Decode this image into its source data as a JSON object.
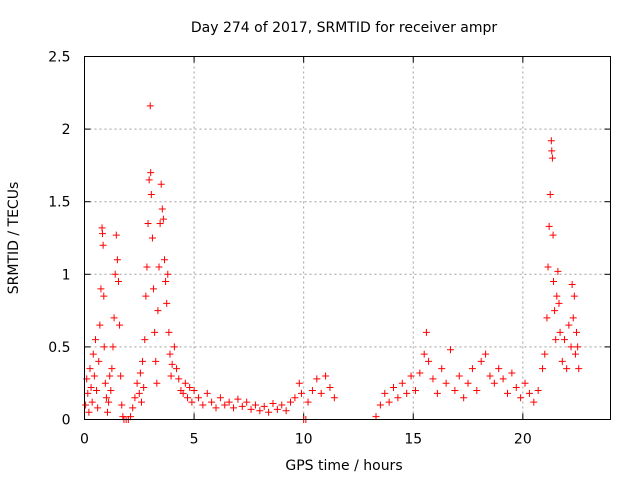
{
  "chart_data": {
    "type": "scatter",
    "title": "Day 274 of 2017, SRMTID for receiver ampr",
    "xlabel": "GPS time / hours",
    "ylabel": "SRMTID / TECUs",
    "xlim": [
      0,
      24
    ],
    "ylim": [
      0,
      2.5
    ],
    "x_ticks": [
      0,
      5,
      10,
      15,
      20
    ],
    "x_tick_labels": [
      "0",
      "5",
      "10",
      "15",
      "20"
    ],
    "y_ticks": [
      0,
      0.5,
      1,
      1.5,
      2,
      2.5
    ],
    "y_tick_labels": [
      "0",
      "0.5",
      "1",
      "1.5",
      "2",
      "2.5"
    ],
    "grid": true,
    "marker": "+",
    "color": "#ff0000",
    "series": [
      {
        "name": "SRMTID",
        "points": [
          [
            0.05,
            0.1
          ],
          [
            0.1,
            0.28
          ],
          [
            0.15,
            0.18
          ],
          [
            0.2,
            0.05
          ],
          [
            0.25,
            0.35
          ],
          [
            0.3,
            0.22
          ],
          [
            0.35,
            0.12
          ],
          [
            0.4,
            0.45
          ],
          [
            0.45,
            0.3
          ],
          [
            0.5,
            0.55
          ],
          [
            0.55,
            0.2
          ],
          [
            0.6,
            0.08
          ],
          [
            0.65,
            0.4
          ],
          [
            0.7,
            0.65
          ],
          [
            0.75,
            0.9
          ],
          [
            0.8,
            1.32
          ],
          [
            0.82,
            1.28
          ],
          [
            0.85,
            1.2
          ],
          [
            0.88,
            0.85
          ],
          [
            0.9,
            0.5
          ],
          [
            0.95,
            0.25
          ],
          [
            1.0,
            0.15
          ],
          [
            1.05,
            0.05
          ],
          [
            1.1,
            0.12
          ],
          [
            1.15,
            0.3
          ],
          [
            1.2,
            0.2
          ],
          [
            1.25,
            0.35
          ],
          [
            1.3,
            0.5
          ],
          [
            1.35,
            0.7
          ],
          [
            1.4,
            1.0
          ],
          [
            1.45,
            1.27
          ],
          [
            1.5,
            1.1
          ],
          [
            1.55,
            0.95
          ],
          [
            1.6,
            0.65
          ],
          [
            1.65,
            0.3
          ],
          [
            1.7,
            0.1
          ],
          [
            1.75,
            0.02
          ],
          [
            1.8,
            0.0
          ],
          [
            1.9,
            0.0
          ],
          [
            2.0,
            0.0
          ],
          [
            2.1,
            0.02
          ],
          [
            2.2,
            0.08
          ],
          [
            2.3,
            0.15
          ],
          [
            2.4,
            0.25
          ],
          [
            2.5,
            0.18
          ],
          [
            2.55,
            0.32
          ],
          [
            2.6,
            0.12
          ],
          [
            2.65,
            0.4
          ],
          [
            2.7,
            0.22
          ],
          [
            2.75,
            0.55
          ],
          [
            2.8,
            0.85
          ],
          [
            2.85,
            1.05
          ],
          [
            2.9,
            1.35
          ],
          [
            2.95,
            1.65
          ],
          [
            3.0,
            2.16
          ],
          [
            3.02,
            1.7
          ],
          [
            3.05,
            1.55
          ],
          [
            3.1,
            1.25
          ],
          [
            3.15,
            0.9
          ],
          [
            3.2,
            0.6
          ],
          [
            3.25,
            0.4
          ],
          [
            3.3,
            0.25
          ],
          [
            3.35,
            0.75
          ],
          [
            3.4,
            1.05
          ],
          [
            3.45,
            1.35
          ],
          [
            3.5,
            1.62
          ],
          [
            3.55,
            1.45
          ],
          [
            3.6,
            1.38
          ],
          [
            3.65,
            1.1
          ],
          [
            3.7,
            0.95
          ],
          [
            3.75,
            0.8
          ],
          [
            3.8,
            1.0
          ],
          [
            3.85,
            0.6
          ],
          [
            3.9,
            0.45
          ],
          [
            3.95,
            0.3
          ],
          [
            4.0,
            0.38
          ],
          [
            4.1,
            0.5
          ],
          [
            4.2,
            0.35
          ],
          [
            4.3,
            0.28
          ],
          [
            4.4,
            0.2
          ],
          [
            4.5,
            0.18
          ],
          [
            4.6,
            0.25
          ],
          [
            4.7,
            0.15
          ],
          [
            4.8,
            0.22
          ],
          [
            4.9,
            0.12
          ],
          [
            5.0,
            0.2
          ],
          [
            5.2,
            0.15
          ],
          [
            5.4,
            0.1
          ],
          [
            5.6,
            0.18
          ],
          [
            5.8,
            0.12
          ],
          [
            6.0,
            0.08
          ],
          [
            6.2,
            0.15
          ],
          [
            6.4,
            0.1
          ],
          [
            6.6,
            0.12
          ],
          [
            6.8,
            0.08
          ],
          [
            7.0,
            0.14
          ],
          [
            7.2,
            0.09
          ],
          [
            7.4,
            0.12
          ],
          [
            7.6,
            0.07
          ],
          [
            7.8,
            0.1
          ],
          [
            8.0,
            0.06
          ],
          [
            8.2,
            0.09
          ],
          [
            8.4,
            0.05
          ],
          [
            8.6,
            0.11
          ],
          [
            8.8,
            0.07
          ],
          [
            9.0,
            0.1
          ],
          [
            9.2,
            0.06
          ],
          [
            9.4,
            0.12
          ],
          [
            9.6,
            0.15
          ],
          [
            9.8,
            0.25
          ],
          [
            9.9,
            0.18
          ],
          [
            10.0,
            0.0
          ],
          [
            10.1,
            0.0
          ],
          [
            10.2,
            0.12
          ],
          [
            10.4,
            0.2
          ],
          [
            10.6,
            0.28
          ],
          [
            10.8,
            0.18
          ],
          [
            11.0,
            0.3
          ],
          [
            11.2,
            0.22
          ],
          [
            11.4,
            0.15
          ],
          [
            13.3,
            0.02
          ],
          [
            13.5,
            0.1
          ],
          [
            13.7,
            0.18
          ],
          [
            13.9,
            0.12
          ],
          [
            14.1,
            0.22
          ],
          [
            14.3,
            0.15
          ],
          [
            14.5,
            0.25
          ],
          [
            14.7,
            0.18
          ],
          [
            14.9,
            0.3
          ],
          [
            15.1,
            0.2
          ],
          [
            15.3,
            0.32
          ],
          [
            15.5,
            0.45
          ],
          [
            15.6,
            0.6
          ],
          [
            15.7,
            0.4
          ],
          [
            15.9,
            0.28
          ],
          [
            16.1,
            0.18
          ],
          [
            16.3,
            0.35
          ],
          [
            16.5,
            0.25
          ],
          [
            16.7,
            0.48
          ],
          [
            16.9,
            0.2
          ],
          [
            17.1,
            0.3
          ],
          [
            17.3,
            0.15
          ],
          [
            17.5,
            0.25
          ],
          [
            17.7,
            0.35
          ],
          [
            17.9,
            0.2
          ],
          [
            18.1,
            0.4
          ],
          [
            18.3,
            0.45
          ],
          [
            18.5,
            0.3
          ],
          [
            18.7,
            0.25
          ],
          [
            18.9,
            0.35
          ],
          [
            19.1,
            0.28
          ],
          [
            19.3,
            0.18
          ],
          [
            19.5,
            0.32
          ],
          [
            19.7,
            0.22
          ],
          [
            19.9,
            0.15
          ],
          [
            20.1,
            0.25
          ],
          [
            20.3,
            0.18
          ],
          [
            20.5,
            0.12
          ],
          [
            20.7,
            0.2
          ],
          [
            20.9,
            0.35
          ],
          [
            21.0,
            0.45
          ],
          [
            21.1,
            0.7
          ],
          [
            21.15,
            1.05
          ],
          [
            21.2,
            1.33
          ],
          [
            21.25,
            1.55
          ],
          [
            21.3,
            1.92
          ],
          [
            21.32,
            1.85
          ],
          [
            21.35,
            1.8
          ],
          [
            21.38,
            1.27
          ],
          [
            21.4,
            0.95
          ],
          [
            21.45,
            0.75
          ],
          [
            21.5,
            0.55
          ],
          [
            21.55,
            0.85
          ],
          [
            21.6,
            1.02
          ],
          [
            21.65,
            0.8
          ],
          [
            21.7,
            0.6
          ],
          [
            21.8,
            0.4
          ],
          [
            21.9,
            0.55
          ],
          [
            22.0,
            0.35
          ],
          [
            22.1,
            0.65
          ],
          [
            22.2,
            0.5
          ],
          [
            22.25,
            0.93
          ],
          [
            22.3,
            0.7
          ],
          [
            22.35,
            0.85
          ],
          [
            22.4,
            0.45
          ],
          [
            22.45,
            0.6
          ],
          [
            22.5,
            0.5
          ],
          [
            22.55,
            0.35
          ]
        ]
      }
    ]
  }
}
